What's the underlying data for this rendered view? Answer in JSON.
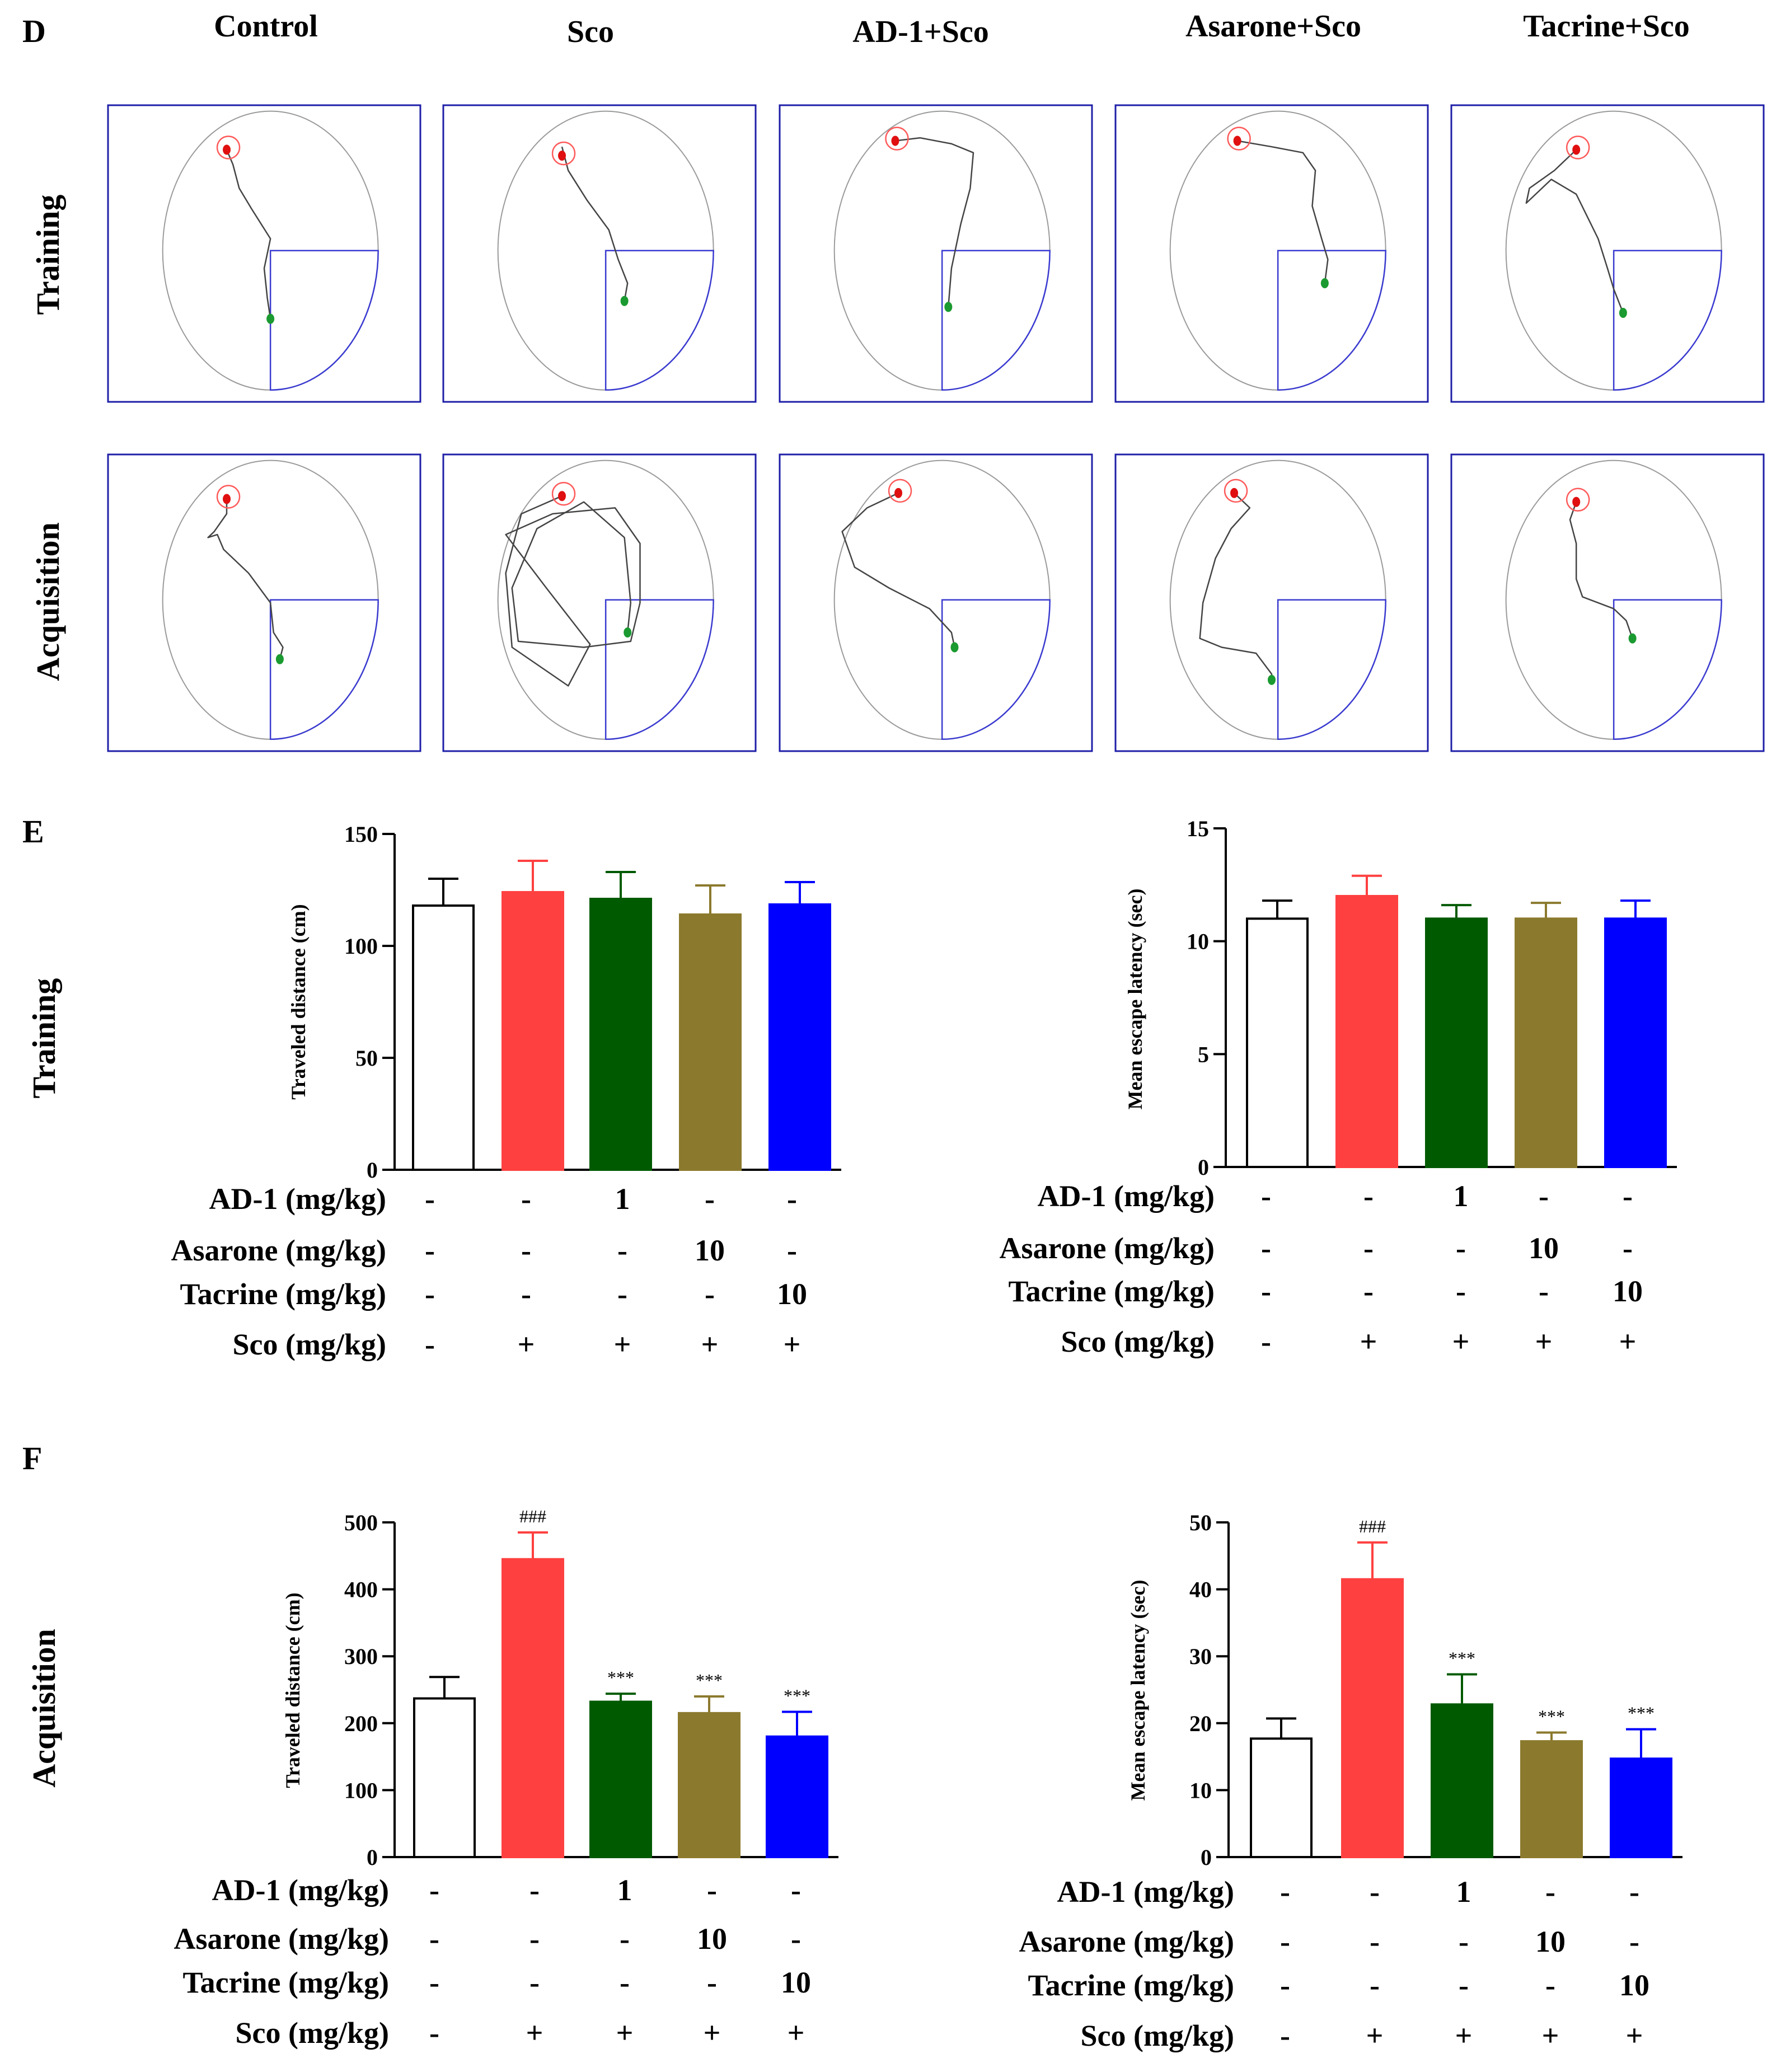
{
  "panels": {
    "D": {
      "letter": "D",
      "row_labels": [
        "Training",
        "Acquisition"
      ],
      "groups": [
        "Control",
        "Sco",
        "AD-1+Sco",
        "Asarone+Sco",
        "Tacrine+Sco"
      ]
    },
    "E": {
      "letter": "E",
      "row_label": "Training"
    },
    "F": {
      "letter": "F",
      "row_label": "Acquisition"
    }
  },
  "treatment_table": {
    "row_labels": [
      "AD-1 (mg/kg)",
      "Asarone (mg/kg)",
      "Tacrine (mg/kg)",
      "Sco (mg/kg)"
    ],
    "rows": [
      [
        "-",
        "-",
        "1",
        "-",
        "-"
      ],
      [
        "-",
        "-",
        "-",
        "10",
        "-"
      ],
      [
        "-",
        "-",
        "-",
        "-",
        "10"
      ],
      [
        "-",
        "+",
        "+",
        "+",
        "+"
      ]
    ]
  },
  "colors": {
    "control": "#ffffff",
    "sco": "#ff4040",
    "ad1": "#005a00",
    "asarone": "#8b7a2e",
    "tacrine": "#0000ff",
    "box_border": "#1f1fa8",
    "track": "#444444"
  },
  "chart_data": [
    {
      "type": "bar",
      "panel": "E",
      "ylabel": "Traveled distance (cm)",
      "ylim": [
        0,
        150
      ],
      "yticks": [
        0,
        50,
        100,
        150
      ],
      "categories": [
        "Control",
        "Sco",
        "AD-1+Sco",
        "Asarone+Sco",
        "Tacrine+Sco"
      ],
      "values": [
        118,
        124,
        121,
        114,
        118.5
      ],
      "errors": [
        12,
        14,
        12,
        13,
        10
      ],
      "annotations": [
        "",
        "",
        "",
        "",
        ""
      ]
    },
    {
      "type": "bar",
      "panel": "E",
      "ylabel": "Mean escape latency (sec)",
      "ylim": [
        0,
        15
      ],
      "yticks": [
        0,
        5,
        10,
        15
      ],
      "categories": [
        "Control",
        "Sco",
        "AD-1+Sco",
        "Asarone+Sco",
        "Tacrine+Sco"
      ],
      "values": [
        11.0,
        12.0,
        11.0,
        11.0,
        11.0
      ],
      "errors": [
        0.8,
        0.9,
        0.6,
        0.7,
        0.8
      ],
      "annotations": [
        "",
        "",
        "",
        "",
        ""
      ]
    },
    {
      "type": "bar",
      "panel": "F",
      "ylabel": "Traveled distance (cm)",
      "ylim": [
        0,
        500
      ],
      "yticks": [
        0,
        100,
        200,
        300,
        400,
        500
      ],
      "categories": [
        "Control",
        "Sco",
        "AD-1+Sco",
        "Asarone+Sco",
        "Tacrine+Sco"
      ],
      "values": [
        237,
        445,
        232,
        215,
        180
      ],
      "errors": [
        32,
        40,
        12,
        25,
        37
      ],
      "annotations": [
        "",
        "###",
        "***",
        "***",
        "***"
      ]
    },
    {
      "type": "bar",
      "panel": "F",
      "ylabel": "Mean escape latency (sec)",
      "ylim": [
        0,
        50
      ],
      "yticks": [
        0,
        10,
        20,
        30,
        40,
        50
      ],
      "categories": [
        "Control",
        "Sco",
        "AD-1+Sco",
        "Asarone+Sco",
        "Tacrine+Sco"
      ],
      "values": [
        17.7,
        41.5,
        22.8,
        17.3,
        14.7
      ],
      "errors": [
        3.0,
        5.5,
        4.5,
        1.3,
        4.4
      ],
      "annotations": [
        "",
        "###",
        "***",
        "***",
        "***"
      ]
    }
  ]
}
